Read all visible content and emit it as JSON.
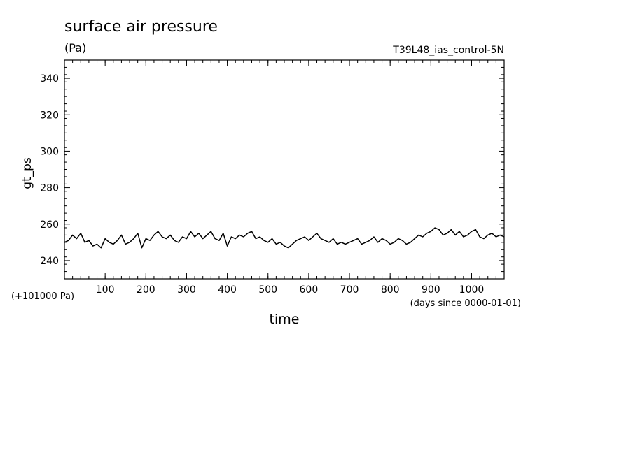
{
  "chart_data": {
    "type": "line",
    "title": "surface air pressure",
    "units": "(Pa)",
    "experiment": "T39L48_ias_control-5N",
    "xlabel": "time",
    "x_units": "(days since 0000-01-01)",
    "ylabel": "gt_ps",
    "y_offset_label": "(+101000 Pa)",
    "xlim": [
      0,
      1080
    ],
    "ylim": [
      230,
      350
    ],
    "x_ticks": [
      100,
      200,
      300,
      400,
      500,
      600,
      700,
      800,
      900,
      1000
    ],
    "y_ticks": [
      240,
      260,
      280,
      300,
      320,
      340
    ],
    "grid": false,
    "line_color": "#000000",
    "series": [
      {
        "x": [
          0,
          10,
          20,
          30,
          40,
          50,
          60,
          70,
          80,
          90,
          100,
          110,
          120,
          130,
          140,
          150,
          160,
          170,
          180,
          190,
          200,
          210,
          220,
          230,
          240,
          250,
          260,
          270,
          280,
          290,
          300,
          310,
          320,
          330,
          340,
          350,
          360,
          370,
          380,
          390,
          400,
          410,
          420,
          430,
          440,
          450,
          460,
          470,
          480,
          490,
          500,
          510,
          520,
          530,
          540,
          550,
          560,
          570,
          580,
          590,
          600,
          610,
          620,
          630,
          640,
          650,
          660,
          670,
          680,
          690,
          700,
          710,
          720,
          730,
          740,
          750,
          760,
          770,
          780,
          790,
          800,
          810,
          820,
          830,
          840,
          850,
          860,
          870,
          880,
          890,
          900,
          910,
          920,
          930,
          940,
          950,
          960,
          970,
          980,
          990,
          1000,
          1010,
          1020,
          1030,
          1040,
          1050,
          1060,
          1070,
          1080
        ],
        "y": [
          250,
          251,
          254,
          252,
          255,
          250,
          251,
          248,
          249,
          247,
          252,
          250,
          249,
          251,
          254,
          249,
          250,
          252,
          255,
          247,
          252,
          251,
          254,
          256,
          253,
          252,
          254,
          251,
          250,
          253,
          252,
          256,
          253,
          255,
          252,
          254,
          256,
          252,
          251,
          255,
          248,
          253,
          252,
          254,
          253,
          255,
          256,
          252,
          253,
          251,
          250,
          252,
          249,
          250,
          248,
          247,
          249,
          251,
          252,
          253,
          251,
          253,
          255,
          252,
          251,
          250,
          252,
          249,
          250,
          249,
          250,
          251,
          252,
          249,
          250,
          251,
          253,
          250,
          252,
          251,
          249,
          250,
          252,
          251,
          249,
          250,
          252,
          254,
          253,
          255,
          256,
          258,
          257,
          254,
          255,
          257,
          254,
          256,
          253,
          254,
          256,
          257,
          253,
          252,
          254,
          255,
          253,
          254,
          253
        ]
      }
    ]
  }
}
